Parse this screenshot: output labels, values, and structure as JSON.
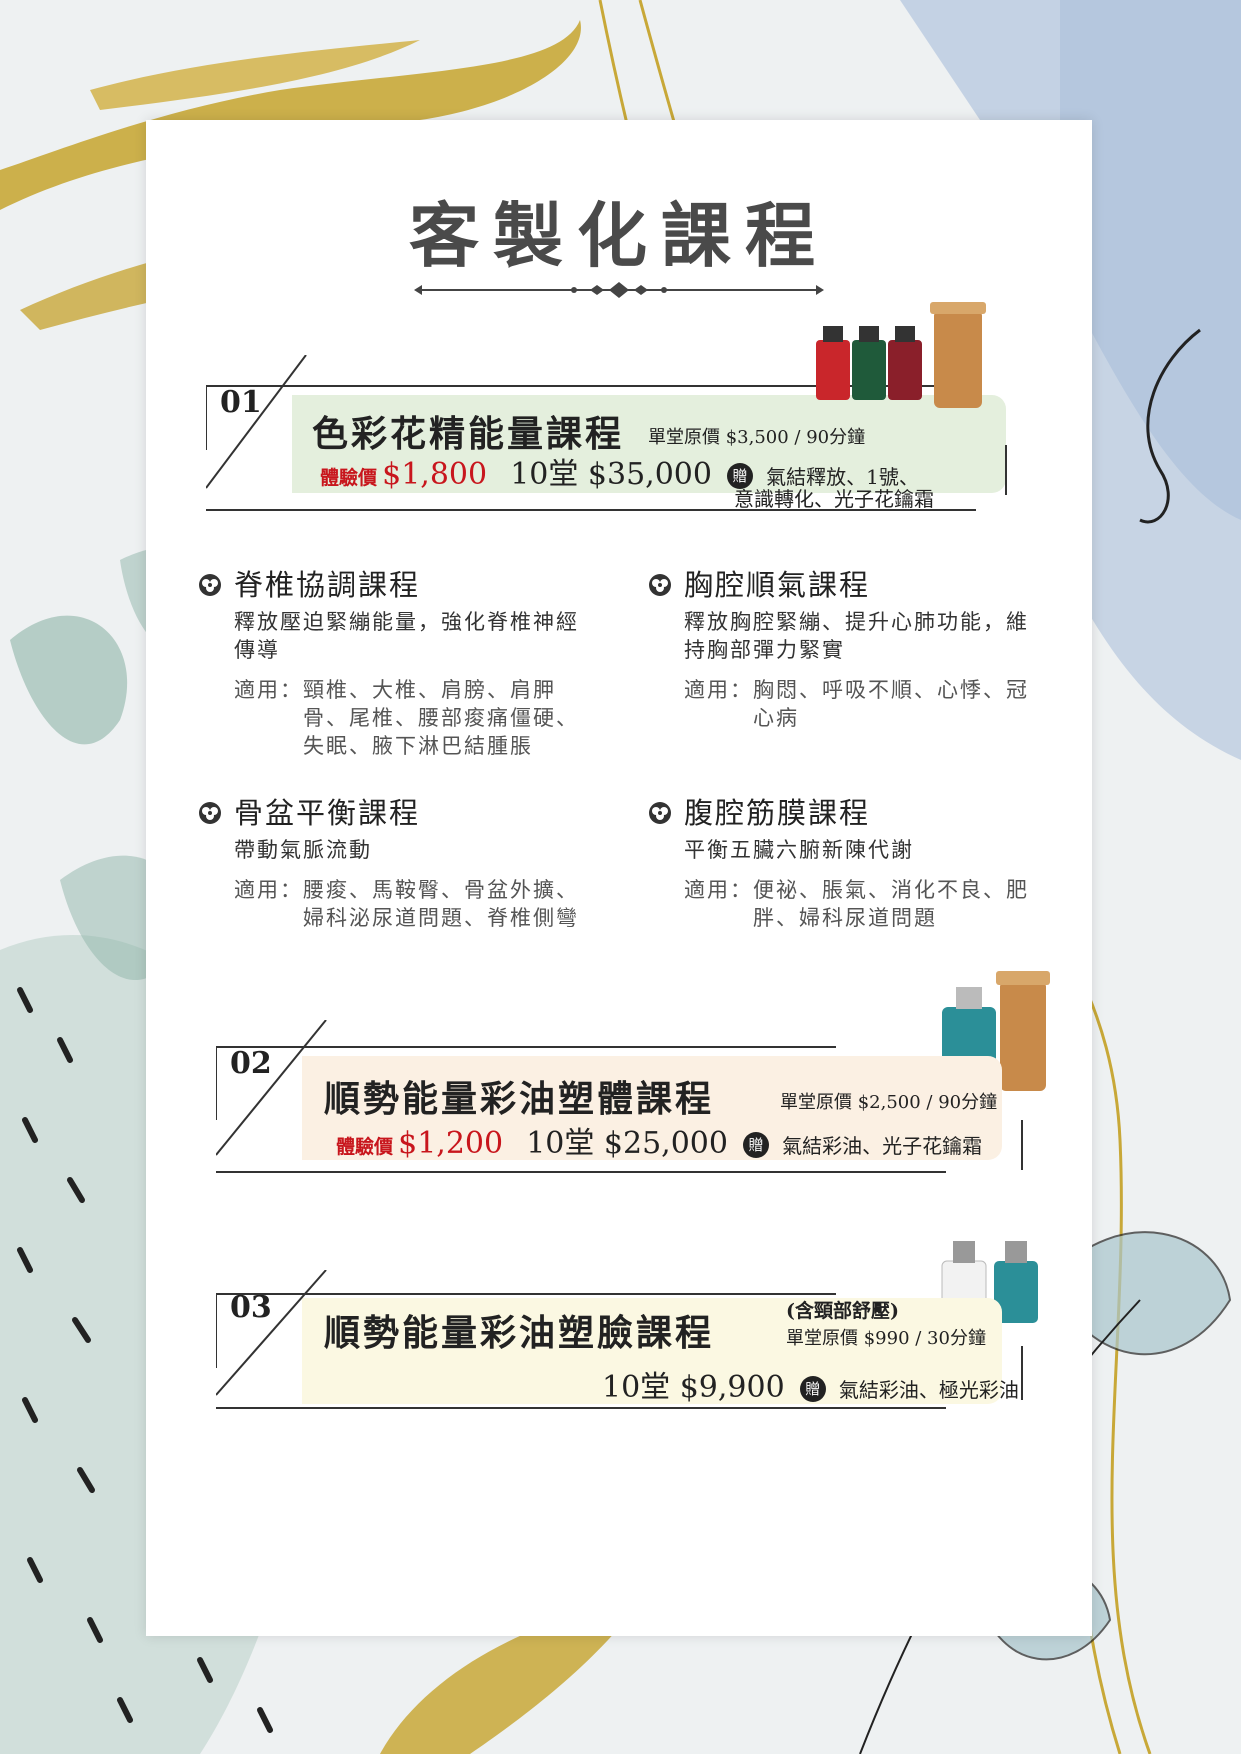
{
  "title": "客製化課程",
  "banners": [
    {
      "num": "01",
      "name": "色彩花精能量課程",
      "sup": "",
      "sub": "單堂原價 $3,500 / 90分鐘",
      "trial_label": "體驗價",
      "trial_price": "$1,800",
      "package": "10堂 $35,000",
      "gift_icon": "贈",
      "gift_line1": "氣結釋放、1號、",
      "gift_line2": "意識轉化、光子花鑰霜",
      "color": "#e4efdd"
    },
    {
      "num": "02",
      "name": "順勢能量彩油塑體課程",
      "sup": "",
      "sub": "單堂原價 $2,500 / 90分鐘",
      "trial_label": "體驗價",
      "trial_price": "$1,200",
      "package": "10堂 $25,000",
      "gift_icon": "贈",
      "gift_line1": "氣結彩油、光子花鑰霜",
      "gift_line2": "",
      "color": "#fbf0e3"
    },
    {
      "num": "03",
      "name": "順勢能量彩油塑臉課程",
      "sup": "(含頸部舒壓)",
      "sub": "單堂原價 $990 / 30分鐘",
      "trial_label": "",
      "trial_price": "",
      "package": "10堂 $9,900",
      "gift_icon": "贈",
      "gift_line1": "氣結彩油、極光彩油",
      "gift_line2": "",
      "color": "#fbf8e2"
    }
  ],
  "courses": [
    {
      "name": "脊椎協調課程",
      "desc": "釋放壓迫緊繃能量，強化脊椎神經傳導",
      "suit_label": "適用：",
      "suit": "頸椎、大椎、肩膀、肩胛骨、尾椎、腰部痠痛僵硬、失眠、腋下淋巴結腫脹"
    },
    {
      "name": "胸腔順氣課程",
      "desc": "釋放胸腔緊繃、提升心肺功能，維持胸部彈力緊實",
      "suit_label": "適用：",
      "suit": "胸悶、呼吸不順、心悸、冠心病"
    },
    {
      "name": "骨盆平衡課程",
      "desc": "帶動氣脈流動",
      "suit_label": "適用：",
      "suit": "腰痠、馬鞍臀、骨盆外擴、婦科泌尿道問題、脊椎側彎"
    },
    {
      "name": "腹腔筋膜課程",
      "desc": "平衡五臟六腑新陳代謝",
      "suit_label": "適用：",
      "suit": "便祕、脹氣、消化不良、肥胖、婦科尿道問題"
    }
  ],
  "colors": {
    "gold": "#c8a838",
    "accent_red": "#c8161d",
    "leaf": "#8fb5a9"
  }
}
